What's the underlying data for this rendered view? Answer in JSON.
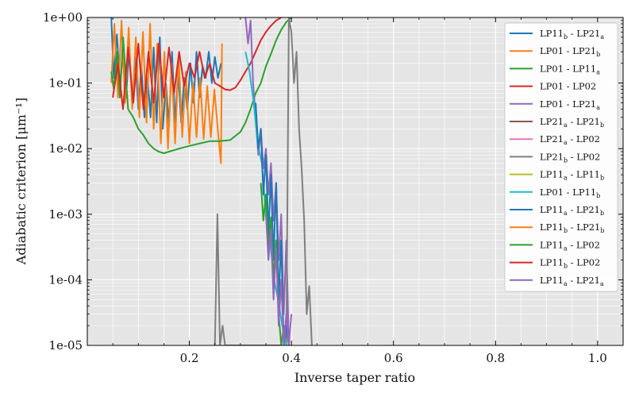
{
  "chart_data": {
    "type": "line",
    "xlabel": "Inverse taper ratio",
    "ylabel": "Adiabatic criterion [μm⁻¹]",
    "y_scale": "log",
    "xlim": [
      0.0,
      1.05
    ],
    "ylim": [
      1e-05,
      1
    ],
    "x_ticks": [
      0.2,
      0.4,
      0.6,
      0.8,
      1.0
    ],
    "x_tick_labels": [
      "0.2",
      "0.4",
      "0.6",
      "0.8",
      "1.0"
    ],
    "y_ticks": [
      1e-05,
      0.0001,
      0.001,
      0.01,
      0.1,
      1
    ],
    "y_tick_labels": [
      "1e-05",
      "1e-04",
      "1e-03",
      "1e-02",
      "1e-01",
      "1e+00"
    ],
    "grid": true,
    "legend_position": "upper-right",
    "background": "#e5e5e5",
    "series": [
      {
        "name": "LP11_b - LP21_a",
        "base": "LP11",
        "sub1": "b",
        "mid": " - LP21",
        "sub2": "a",
        "color": "#1f77b4",
        "x": [
          0.047,
          0.052,
          0.058,
          0.064,
          0.07,
          0.076,
          0.082,
          0.088,
          0.094,
          0.1,
          0.106,
          0.112,
          0.118,
          0.124,
          0.13,
          0.136,
          0.142,
          0.148,
          0.154,
          0.16,
          0.166,
          0.172,
          0.178,
          0.184,
          0.19,
          0.196,
          0.202,
          0.208,
          0.214,
          0.22,
          0.226,
          0.232,
          0.238,
          0.244,
          0.25,
          0.256,
          0.262
        ],
        "y": [
          1.0,
          0.12,
          0.55,
          0.09,
          0.3,
          0.06,
          0.4,
          0.05,
          0.25,
          0.04,
          0.18,
          0.03,
          0.12,
          0.03,
          0.35,
          0.025,
          0.5,
          0.02,
          0.1,
          0.022,
          0.3,
          0.025,
          0.15,
          0.025,
          0.12,
          0.04,
          0.2,
          0.05,
          0.3,
          0.06,
          0.18,
          0.12,
          0.3,
          0.1,
          0.25,
          0.12,
          0.2
        ]
      },
      {
        "name": "LP01 - LP21_b",
        "base": "LP01",
        "sub1": "",
        "mid": " - LP21",
        "sub2": "b",
        "color": "#ff7f0e",
        "x": [
          0.047,
          0.053,
          0.06,
          0.067,
          0.074,
          0.081,
          0.088,
          0.095,
          0.102,
          0.109,
          0.116,
          0.123,
          0.13,
          0.137,
          0.144,
          0.151,
          0.158,
          0.165,
          0.172,
          0.179,
          0.186,
          0.193,
          0.2,
          0.207,
          0.214,
          0.221,
          0.228,
          0.235,
          0.242,
          0.249,
          0.256,
          0.262,
          0.264
        ],
        "y": [
          0.1,
          0.8,
          0.06,
          0.9,
          0.05,
          0.7,
          0.04,
          0.5,
          0.03,
          0.6,
          0.025,
          0.8,
          0.02,
          0.4,
          0.012,
          0.3,
          0.01,
          0.2,
          0.012,
          0.25,
          0.015,
          0.15,
          0.012,
          0.1,
          0.015,
          0.12,
          0.014,
          0.09,
          0.015,
          0.08,
          0.018,
          0.006,
          0.4
        ]
      },
      {
        "name": "LP01 - LP11_a",
        "base": "LP01",
        "sub1": "",
        "mid": " - LP11",
        "sub2": "a",
        "color": "#2ca02c",
        "x": [
          0.047,
          0.052,
          0.058,
          0.064,
          0.07,
          0.08,
          0.09,
          0.1,
          0.11,
          0.12,
          0.13,
          0.14,
          0.15,
          0.16,
          0.18,
          0.2,
          0.22,
          0.24,
          0.26,
          0.28,
          0.3,
          0.31,
          0.32,
          0.33,
          0.34,
          0.35,
          0.36,
          0.37,
          0.38,
          0.39,
          0.4
        ],
        "y": [
          0.15,
          0.08,
          0.3,
          0.06,
          0.5,
          0.04,
          0.03,
          0.02,
          0.016,
          0.012,
          0.01,
          0.009,
          0.0085,
          0.009,
          0.01,
          0.011,
          0.012,
          0.013,
          0.013,
          0.0135,
          0.018,
          0.025,
          0.04,
          0.07,
          0.1,
          0.18,
          0.28,
          0.45,
          0.65,
          0.85,
          1.0
        ]
      },
      {
        "name": "LP01 - LP02",
        "base": "LP01",
        "sub1": "",
        "mid": " - LP02",
        "sub2": "",
        "color": "#d62728",
        "x": [
          0.05,
          0.06,
          0.07,
          0.08,
          0.09,
          0.1,
          0.11,
          0.12,
          0.13,
          0.14,
          0.15,
          0.16,
          0.17,
          0.18,
          0.19,
          0.2,
          0.21,
          0.22,
          0.23,
          0.24,
          0.25,
          0.26,
          0.27,
          0.28,
          0.29,
          0.3,
          0.31,
          0.32,
          0.33,
          0.34,
          0.35,
          0.36,
          0.37,
          0.38
        ],
        "y": [
          0.06,
          0.2,
          0.04,
          0.35,
          0.05,
          0.4,
          0.04,
          0.3,
          0.05,
          0.4,
          0.06,
          0.35,
          0.07,
          0.3,
          0.09,
          0.2,
          0.12,
          0.3,
          0.12,
          0.2,
          0.1,
          0.09,
          0.08,
          0.078,
          0.085,
          0.11,
          0.15,
          0.2,
          0.3,
          0.45,
          0.6,
          0.75,
          0.9,
          1.0
        ]
      },
      {
        "name": "LP01 - LP21_a",
        "base": "LP01",
        "sub1": "",
        "mid": " - LP21",
        "sub2": "a",
        "color": "#9467bd",
        "x": [
          0.31,
          0.315,
          0.32,
          0.325,
          0.33,
          0.335,
          0.34,
          0.345,
          0.35,
          0.355,
          0.36,
          0.365,
          0.37,
          0.375,
          0.38,
          0.385,
          0.39,
          0.395,
          0.4
        ],
        "y": [
          1.0,
          0.4,
          0.9,
          0.1,
          0.03,
          0.008,
          0.02,
          0.005,
          0.01,
          0.002,
          0.006,
          0.0008,
          0.003,
          0.0002,
          0.001,
          3e-05,
          0.0004,
          1e-05,
          3e-05
        ]
      },
      {
        "name": "LP21_a - LP21_b",
        "base": "LP21",
        "sub1": "a",
        "mid": " - LP21",
        "sub2": "b",
        "color": "#8c564b",
        "x": [],
        "y": []
      },
      {
        "name": "LP21_a - LP02",
        "base": "LP21",
        "sub1": "a",
        "mid": " - LP02",
        "sub2": "",
        "color": "#e377c2",
        "x": [],
        "y": []
      },
      {
        "name": "LP21_b - LP02",
        "base": "LP21",
        "sub1": "b",
        "mid": " - LP02",
        "sub2": "",
        "color": "#7f7f7f",
        "x": [
          0.25,
          0.255,
          0.26,
          0.265,
          0.27,
          0.28,
          0.29,
          0.3,
          0.31,
          0.32,
          0.33,
          0.34,
          0.35,
          0.36,
          0.365,
          0.37,
          0.375,
          0.38,
          0.385,
          0.39,
          0.395,
          0.4,
          0.405,
          0.41,
          0.415,
          0.42,
          0.425,
          0.43,
          0.435,
          0.44
        ],
        "y": [
          1e-05,
          0.001,
          1e-05,
          2e-05,
          1e-05,
          1e-05,
          1e-05,
          1e-05,
          1e-05,
          1e-05,
          1e-05,
          1e-05,
          1e-05,
          1e-05,
          1e-05,
          1e-05,
          1e-05,
          1e-05,
          2e-05,
          1e-05,
          1.0,
          0.6,
          0.1,
          0.3,
          0.02,
          0.005,
          0.0008,
          3e-05,
          8e-05,
          1e-05
        ]
      },
      {
        "name": "LP11_a - LP11_b",
        "base": "LP11",
        "sub1": "a",
        "mid": " - LP11",
        "sub2": "b",
        "color": "#bcbd22",
        "x": [],
        "y": []
      },
      {
        "name": "LP01 - LP11_b",
        "base": "LP01",
        "sub1": "",
        "mid": " - LP11",
        "sub2": "b",
        "color": "#17becf",
        "x": [
          0.31,
          0.318,
          0.326,
          0.334,
          0.342,
          0.35,
          0.358,
          0.366,
          0.374,
          0.382,
          0.39
        ],
        "y": [
          0.3,
          0.15,
          0.05,
          0.012,
          0.006,
          0.001,
          0.0004,
          0.0001,
          5e-05,
          2e-05,
          1e-05
        ]
      },
      {
        "name": "LP11_a - LP21_b",
        "base": "LP11",
        "sub1": "a",
        "mid": " - LP21",
        "sub2": "b",
        "color": "#1f77b4",
        "x": [
          0.33,
          0.335,
          0.34,
          0.345,
          0.35,
          0.355,
          0.36,
          0.365,
          0.37,
          0.375,
          0.38,
          0.385,
          0.39,
          0.395
        ],
        "y": [
          0.05,
          0.01,
          0.02,
          0.002,
          0.008,
          0.0005,
          0.004,
          0.0002,
          0.003,
          5e-05,
          0.0004,
          1e-05,
          2e-05,
          1e-05
        ]
      },
      {
        "name": "LP11_b - LP21_b",
        "base": "LP11",
        "sub1": "b",
        "mid": " - LP21",
        "sub2": "b",
        "color": "#ff7f0e",
        "x": [],
        "y": []
      },
      {
        "name": "LP11_a - LP02",
        "base": "LP11",
        "sub1": "a",
        "mid": " - LP02",
        "sub2": "",
        "color": "#2ca02c",
        "x": [
          0.34,
          0.345,
          0.35,
          0.355,
          0.36,
          0.365,
          0.37,
          0.375,
          0.38
        ],
        "y": [
          0.003,
          0.0008,
          0.002,
          0.0003,
          0.0009,
          0.0001,
          0.0004,
          3e-05,
          1e-05
        ]
      },
      {
        "name": "LP11_b - LP02",
        "base": "LP11",
        "sub1": "b",
        "mid": " - LP02",
        "sub2": "",
        "color": "#d62728",
        "x": [],
        "y": []
      },
      {
        "name": "LP11_a - LP21_a",
        "base": "LP11",
        "sub1": "a",
        "mid": " - LP21",
        "sub2": "a",
        "color": "#9467bd",
        "x": [
          0.35,
          0.355,
          0.36,
          0.365,
          0.37,
          0.375,
          0.38,
          0.385,
          0.39,
          0.395
        ],
        "y": [
          0.001,
          0.0002,
          0.0006,
          5e-05,
          0.0003,
          2e-05,
          0.0001,
          1e-05,
          3e-05,
          1e-05
        ]
      }
    ]
  }
}
